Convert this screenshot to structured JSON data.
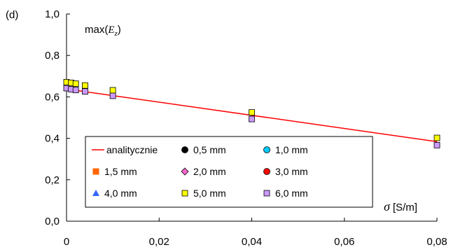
{
  "panel_label": "(d)",
  "chart_data": {
    "type": "scatter",
    "y_label": {
      "prefix": "max(",
      "var": "E",
      "sub": "z",
      "suffix": ")"
    },
    "x_label": {
      "var": "σ",
      "unit": "[S/m]"
    },
    "xlim": [
      0,
      0.08
    ],
    "ylim": [
      0,
      1.0
    ],
    "x_ticks": [
      0,
      0.02,
      0.04,
      0.06,
      0.08
    ],
    "x_tick_labels": [
      "0",
      "0,02",
      "0,04",
      "0,06",
      "0,08"
    ],
    "y_ticks": [
      0,
      0.2,
      0.4,
      0.6,
      0.8,
      1.0
    ],
    "y_tick_labels": [
      "0,0",
      "0,2",
      "0,4",
      "0,6",
      "0,8",
      "1,0"
    ],
    "grid": false,
    "legend_position": "bottom-left",
    "analytic_line": {
      "name": "analitycznie",
      "color": "#ff0000",
      "x": [
        0,
        0.08
      ],
      "y": [
        0.638,
        0.384
      ]
    },
    "series": [
      {
        "name": "0,5 mm",
        "marker": "circle",
        "color": "#000000",
        "x": [],
        "y": []
      },
      {
        "name": "1,0 mm",
        "marker": "circle",
        "color": "#00ccff",
        "x": [],
        "y": []
      },
      {
        "name": "1,5 mm",
        "marker": "square-filled",
        "color": "#ff6600",
        "x": [],
        "y": []
      },
      {
        "name": "2,0 mm",
        "marker": "diamond",
        "color": "#ff66cc",
        "x": [],
        "y": []
      },
      {
        "name": "3,0 mm",
        "marker": "circle",
        "color": "#ff0000",
        "x": [],
        "y": []
      },
      {
        "name": "4,0 mm",
        "marker": "triangle",
        "color": "#3366ff",
        "x": [],
        "y": []
      },
      {
        "name": "5,0 mm",
        "marker": "square",
        "color": "#ffff00",
        "x": [
          0,
          0.001,
          0.002,
          0.004,
          0.01,
          0.04,
          0.08
        ],
        "y": [
          0.671,
          0.668,
          0.664,
          0.655,
          0.632,
          0.525,
          0.402
        ]
      },
      {
        "name": "6,0 mm",
        "marker": "square",
        "color": "#cc99ff",
        "x": [
          0,
          0.001,
          0.002,
          0.004,
          0.01,
          0.04,
          0.08
        ],
        "y": [
          0.642,
          0.637,
          0.633,
          0.626,
          0.605,
          0.493,
          0.367
        ]
      }
    ]
  }
}
